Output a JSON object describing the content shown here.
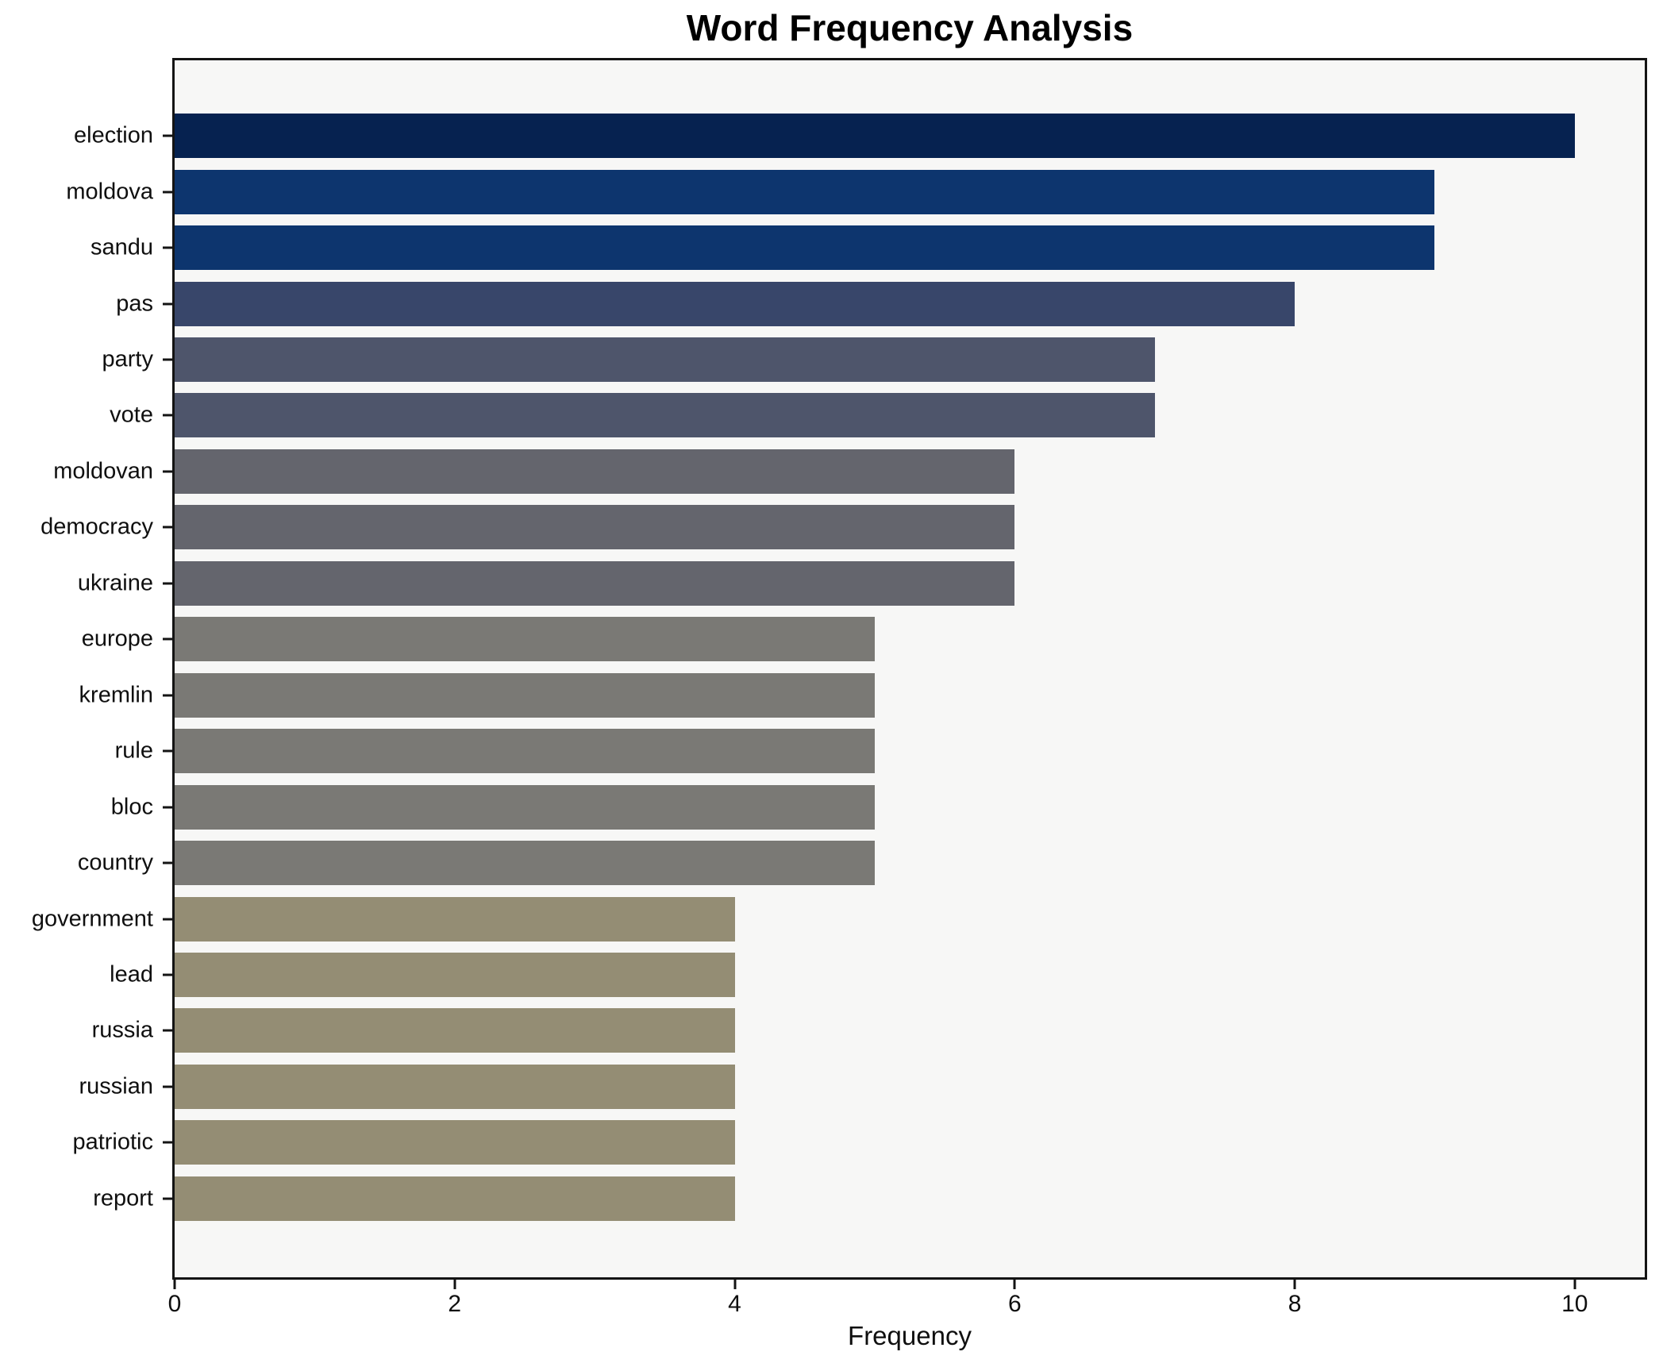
{
  "chart_data": {
    "type": "bar",
    "orientation": "horizontal",
    "title": "Word Frequency Analysis",
    "xlabel": "Frequency",
    "ylabel": "",
    "categories": [
      "election",
      "moldova",
      "sandu",
      "pas",
      "party",
      "vote",
      "moldovan",
      "democracy",
      "ukraine",
      "europe",
      "kremlin",
      "rule",
      "bloc",
      "country",
      "government",
      "lead",
      "russia",
      "russian",
      "patriotic",
      "report"
    ],
    "values": [
      10,
      9,
      9,
      8,
      7,
      7,
      6,
      6,
      6,
      5,
      5,
      5,
      5,
      5,
      4,
      4,
      4,
      4,
      4,
      4
    ],
    "bar_colors": [
      "#062250",
      "#0d356e",
      "#0d356e",
      "#38466a",
      "#4e556b",
      "#4e556b",
      "#64656d",
      "#64656d",
      "#64656d",
      "#7a7975",
      "#7a7975",
      "#7a7975",
      "#7a7975",
      "#7a7975",
      "#948d74",
      "#948d74",
      "#948d74",
      "#948d74",
      "#948d74",
      "#948d74"
    ],
    "xticks": [
      0,
      2,
      4,
      6,
      8,
      10
    ],
    "xlim": [
      0,
      10.5
    ],
    "grid": false,
    "legend_position": "none",
    "plot_background": "#f7f7f6",
    "figure_background": "#ffffff",
    "spine_color": "#141414",
    "colormap": "cividis"
  }
}
